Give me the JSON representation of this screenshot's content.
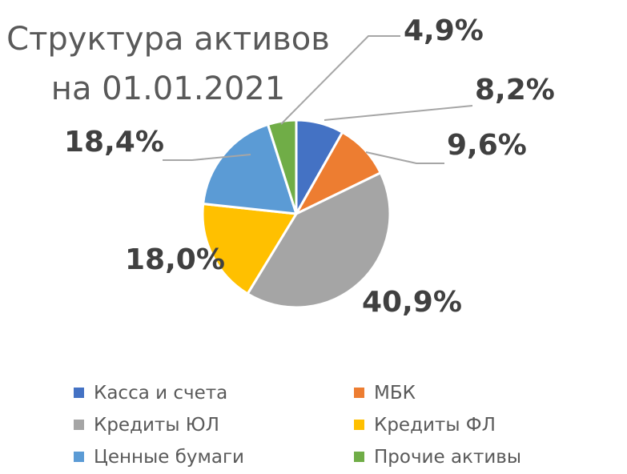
{
  "chart_data": {
    "type": "pie",
    "title": "Структура активов на 01.01.2021",
    "title_lines": [
      "Структура активов",
      "на 01.01.2021"
    ],
    "start_angle_deg": 0,
    "direction": "clockwise",
    "legend_position": "bottom",
    "slices": [
      {
        "name": "Касса и счета",
        "value": 8.2,
        "label": "8,2%",
        "color": "#4472C4"
      },
      {
        "name": "МБК",
        "value": 9.6,
        "label": "9,6%",
        "color": "#ED7D31"
      },
      {
        "name": "Кредиты ЮЛ",
        "value": 40.9,
        "label": "40,9%",
        "color": "#A5A5A5"
      },
      {
        "name": "Кредиты ФЛ",
        "value": 18.0,
        "label": "18,0%",
        "color": "#FFC000"
      },
      {
        "name": "Ценные бумаги",
        "value": 18.4,
        "label": "18,4%",
        "color": "#5B9BD5"
      },
      {
        "name": "Прочие активы",
        "value": 4.9,
        "label": "4,9%",
        "color": "#70AD47"
      }
    ]
  }
}
